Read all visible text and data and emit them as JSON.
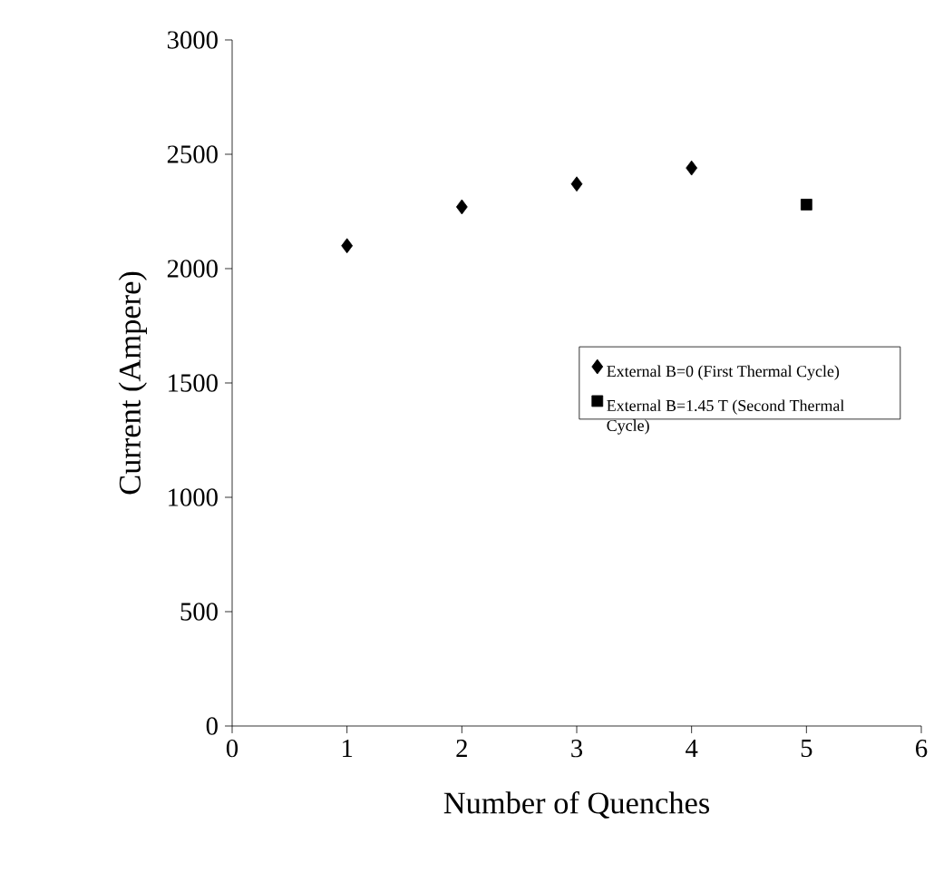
{
  "chart_data": {
    "type": "scatter",
    "xlabel": "Number of Quenches",
    "ylabel": "Current (Ampere)",
    "xlim": [
      0,
      6
    ],
    "xticks": [
      0,
      1,
      2,
      3,
      4,
      5,
      6
    ],
    "ylim": [
      0,
      3000
    ],
    "yticks": [
      0,
      500,
      1000,
      1500,
      2000,
      2500,
      3000
    ],
    "grid": false,
    "legend": "right",
    "series": [
      {
        "name": "External B=0 (First Thermal Cycle)",
        "color": "#000000",
        "marker": "diamond",
        "x": [
          1,
          2,
          3,
          4
        ],
        "values": [
          2100,
          2270,
          2370,
          2440
        ]
      },
      {
        "name": "External B=1.45 T (Second Thermal Cycle)",
        "color": "#000000",
        "marker": "square",
        "x": [
          5
        ],
        "values": [
          2280
        ]
      }
    ]
  }
}
